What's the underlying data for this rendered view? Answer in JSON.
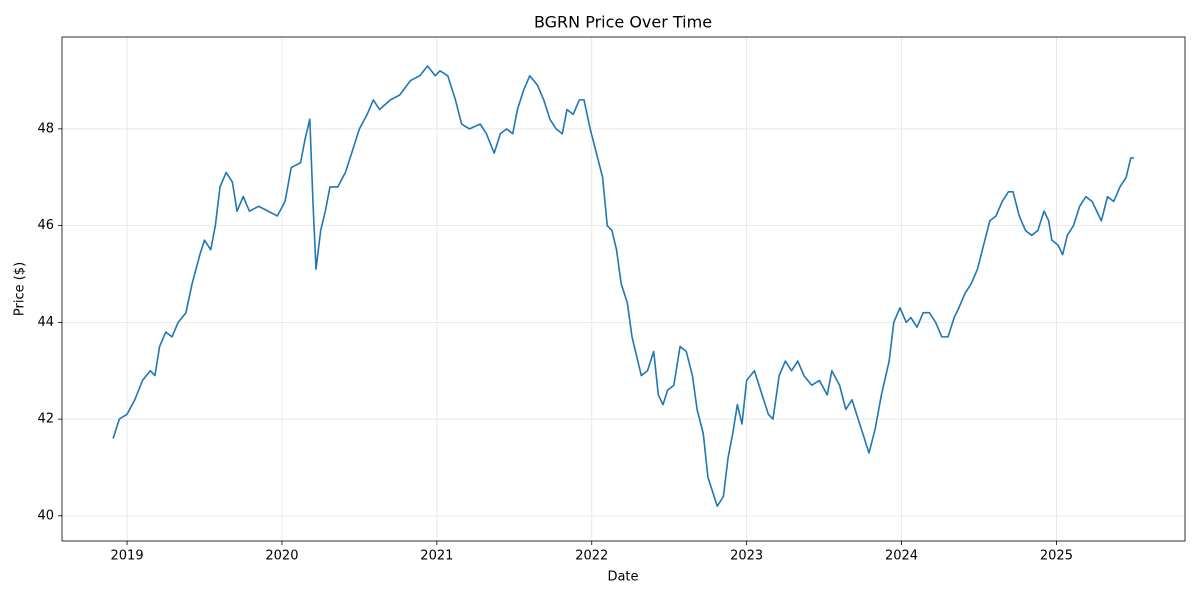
{
  "chart_data": {
    "type": "line",
    "title": "BGRN Price Over Time",
    "x_label": "Date",
    "y_label": "Price ($)",
    "xlim": [
      2018.58,
      2025.83
    ],
    "ylim": [
      39.48,
      49.9
    ],
    "xticks": [
      2019,
      2020,
      2021,
      2022,
      2023,
      2024,
      2025
    ],
    "yticks": [
      40,
      42,
      44,
      46,
      48
    ],
    "grid": true,
    "x": [
      2018.91,
      2018.95,
      2019.0,
      2019.05,
      2019.1,
      2019.15,
      2019.18,
      2019.21,
      2019.25,
      2019.29,
      2019.33,
      2019.38,
      2019.42,
      2019.47,
      2019.5,
      2019.54,
      2019.57,
      2019.6,
      2019.64,
      2019.68,
      2019.71,
      2019.75,
      2019.79,
      2019.85,
      2019.91,
      2019.97,
      2020.02,
      2020.06,
      2020.12,
      2020.15,
      2020.18,
      2020.2,
      2020.22,
      2020.25,
      2020.28,
      2020.31,
      2020.36,
      2020.41,
      2020.45,
      2020.5,
      2020.55,
      2020.59,
      2020.63,
      2020.7,
      2020.76,
      2020.83,
      2020.89,
      2020.94,
      2020.99,
      2021.02,
      2021.07,
      2021.12,
      2021.16,
      2021.21,
      2021.28,
      2021.32,
      2021.37,
      2021.41,
      2021.45,
      2021.49,
      2021.52,
      2021.56,
      2021.6,
      2021.65,
      2021.69,
      2021.73,
      2021.77,
      2021.81,
      2021.84,
      2021.88,
      2021.92,
      2021.95,
      2021.99,
      2022.03,
      2022.07,
      2022.1,
      2022.13,
      2022.16,
      2022.19,
      2022.23,
      2022.26,
      2022.29,
      2022.32,
      2022.36,
      2022.4,
      2022.43,
      2022.46,
      2022.49,
      2022.53,
      2022.57,
      2022.61,
      2022.65,
      2022.68,
      2022.72,
      2022.75,
      2022.78,
      2022.81,
      2022.85,
      2022.88,
      2022.91,
      2022.94,
      2022.97,
      2023.0,
      2023.05,
      2023.09,
      2023.14,
      2023.17,
      2023.21,
      2023.25,
      2023.29,
      2023.33,
      2023.37,
      2023.42,
      2023.47,
      2023.52,
      2023.55,
      2023.6,
      2023.64,
      2023.68,
      2023.72,
      2023.75,
      2023.79,
      2023.83,
      2023.87,
      2023.92,
      2023.95,
      2023.99,
      2024.03,
      2024.06,
      2024.1,
      2024.14,
      2024.18,
      2024.22,
      2024.26,
      2024.3,
      2024.34,
      2024.37,
      2024.41,
      2024.45,
      2024.49,
      2024.53,
      2024.57,
      2024.61,
      2024.65,
      2024.69,
      2024.72,
      2024.76,
      2024.8,
      2024.84,
      2024.88,
      2024.92,
      2024.95,
      2024.97,
      2025.01,
      2025.04,
      2025.07,
      2025.11,
      2025.15,
      2025.19,
      2025.23,
      2025.26,
      2025.29,
      2025.33,
      2025.37,
      2025.41,
      2025.45,
      2025.48,
      2025.5
    ],
    "series": [
      {
        "name": "BGRN",
        "color": "#1f77b4",
        "values": [
          41.6,
          42.0,
          42.1,
          42.4,
          42.8,
          43.0,
          42.9,
          43.5,
          43.8,
          43.7,
          44.0,
          44.2,
          44.8,
          45.4,
          45.7,
          45.5,
          46.0,
          46.8,
          47.1,
          46.9,
          46.3,
          46.6,
          46.3,
          46.4,
          46.3,
          46.2,
          46.5,
          47.2,
          47.3,
          47.8,
          48.2,
          46.5,
          45.1,
          45.9,
          46.3,
          46.8,
          46.8,
          47.1,
          47.5,
          48.0,
          48.3,
          48.6,
          48.4,
          48.6,
          48.7,
          49.0,
          49.1,
          49.3,
          49.1,
          49.2,
          49.1,
          48.6,
          48.1,
          48.0,
          48.1,
          47.9,
          47.5,
          47.9,
          48.0,
          47.9,
          48.4,
          48.8,
          49.1,
          48.9,
          48.6,
          48.2,
          48.0,
          47.9,
          48.4,
          48.3,
          48.6,
          48.6,
          48.0,
          47.5,
          47.0,
          46.0,
          45.9,
          45.5,
          44.8,
          44.4,
          43.7,
          43.3,
          42.9,
          43.0,
          43.4,
          42.5,
          42.3,
          42.6,
          42.7,
          43.5,
          43.4,
          42.9,
          42.2,
          41.7,
          40.8,
          40.5,
          40.2,
          40.4,
          41.2,
          41.7,
          42.3,
          41.9,
          42.8,
          43.0,
          42.6,
          42.1,
          42.0,
          42.9,
          43.2,
          43.0,
          43.2,
          42.9,
          42.7,
          42.8,
          42.5,
          43.0,
          42.7,
          42.2,
          42.4,
          42.0,
          41.7,
          41.3,
          41.8,
          42.5,
          43.2,
          44.0,
          44.3,
          44.0,
          44.1,
          43.9,
          44.2,
          44.2,
          44.0,
          43.7,
          43.7,
          44.1,
          44.3,
          44.6,
          44.8,
          45.1,
          45.6,
          46.1,
          46.2,
          46.5,
          46.7,
          46.7,
          46.2,
          45.9,
          45.8,
          45.9,
          46.3,
          46.1,
          45.7,
          45.6,
          45.4,
          45.8,
          46.0,
          46.4,
          46.6,
          46.5,
          46.3,
          46.1,
          46.6,
          46.5,
          46.8,
          47.0,
          47.4,
          47.4
        ]
      }
    ]
  }
}
